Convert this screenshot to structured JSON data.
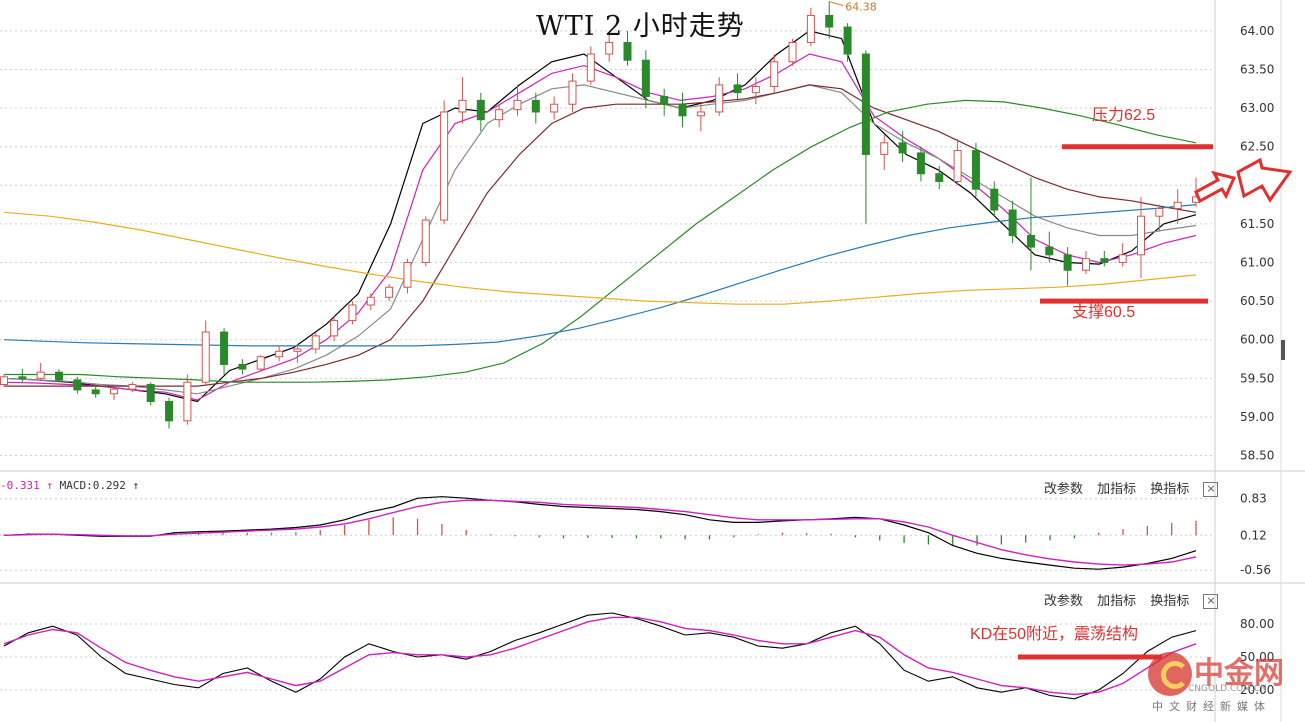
{
  "title": "WTI 2 小时走势",
  "panel_buttons": [
    "改参数",
    "加指标",
    "换指标"
  ],
  "close_symbol": "×",
  "macd_label": {
    "dif": "-0.331",
    "dif_arrow": "↑",
    "macd": "MACD:0.292",
    "macd_arrow": "↑"
  },
  "high_label": "64.38",
  "annotations": {
    "resistance": "压力62.5",
    "support": "支撑60.5",
    "kd": "KD在50附近，震荡结构"
  },
  "logo": {
    "cn": "中金网",
    "en": "CNGOLD.COM.CN",
    "sub": "中文财经新媒体"
  },
  "colors": {
    "up": "#d9534f",
    "down": "#2a8a2a",
    "annotation": "#e03030",
    "k": "#000000",
    "d": "#d020c0"
  },
  "chart_data": [
    {
      "type": "candlestick",
      "title": "WTI 2 小时走势",
      "yticks": [
        "64.00",
        "63.50",
        "63.00",
        "62.50",
        "62.00",
        "61.50",
        "61.00",
        "60.50",
        "60.00",
        "59.50",
        "59.00",
        "58.50"
      ],
      "ylim": [
        58.3,
        64.4
      ],
      "candles": [
        [
          59.42,
          59.55,
          59.4,
          59.52
        ],
        [
          59.52,
          59.62,
          59.45,
          59.5
        ],
        [
          59.5,
          59.7,
          59.48,
          59.58
        ],
        [
          59.58,
          59.62,
          59.45,
          59.48
        ],
        [
          59.48,
          59.52,
          59.3,
          59.35
        ],
        [
          59.35,
          59.42,
          59.25,
          59.3
        ],
        [
          59.3,
          59.38,
          59.22,
          59.36
        ],
        [
          59.36,
          59.45,
          59.32,
          59.42
        ],
        [
          59.42,
          59.45,
          59.15,
          59.2
        ],
        [
          59.2,
          59.25,
          58.85,
          58.95
        ],
        [
          58.95,
          59.55,
          58.9,
          59.45
        ],
        [
          59.45,
          60.25,
          59.4,
          60.1
        ],
        [
          60.1,
          60.15,
          59.55,
          59.68
        ],
        [
          59.68,
          59.75,
          59.55,
          59.62
        ],
        [
          59.62,
          59.8,
          59.6,
          59.78
        ],
        [
          59.78,
          59.92,
          59.72,
          59.85
        ],
        [
          59.85,
          59.95,
          59.7,
          59.88
        ],
        [
          59.88,
          60.1,
          59.82,
          60.05
        ],
        [
          60.05,
          60.3,
          59.98,
          60.25
        ],
        [
          60.25,
          60.5,
          60.2,
          60.45
        ],
        [
          60.45,
          60.6,
          60.38,
          60.55
        ],
        [
          60.55,
          60.72,
          60.5,
          60.68
        ],
        [
          60.68,
          61.05,
          60.6,
          61.0
        ],
        [
          61.0,
          61.6,
          60.95,
          61.55
        ],
        [
          61.55,
          63.1,
          61.5,
          62.95
        ],
        [
          62.95,
          63.4,
          62.8,
          63.1
        ],
        [
          63.1,
          63.2,
          62.7,
          62.85
        ],
        [
          62.85,
          63.05,
          62.75,
          62.98
        ],
        [
          62.98,
          63.3,
          62.9,
          63.1
        ],
        [
          63.1,
          63.2,
          62.8,
          62.95
        ],
        [
          62.95,
          63.15,
          62.85,
          63.05
        ],
        [
          63.05,
          63.45,
          62.95,
          63.35
        ],
        [
          63.35,
          63.8,
          63.3,
          63.7
        ],
        [
          63.7,
          63.95,
          63.6,
          63.85
        ],
        [
          63.85,
          64.0,
          63.55,
          63.62
        ],
        [
          63.62,
          63.75,
          63.0,
          63.15
        ],
        [
          63.15,
          63.25,
          62.9,
          63.05
        ],
        [
          63.05,
          63.2,
          62.75,
          62.9
        ],
        [
          62.9,
          63.05,
          62.7,
          62.95
        ],
        [
          62.95,
          63.4,
          62.9,
          63.3
        ],
        [
          63.3,
          63.45,
          63.1,
          63.2
        ],
        [
          63.2,
          63.4,
          63.05,
          63.28
        ],
        [
          63.28,
          63.7,
          63.2,
          63.6
        ],
        [
          63.6,
          63.9,
          63.55,
          63.85
        ],
        [
          63.85,
          64.3,
          63.8,
          64.2
        ],
        [
          64.2,
          64.38,
          63.9,
          64.05
        ],
        [
          64.05,
          64.1,
          63.6,
          63.7
        ],
        [
          63.7,
          63.75,
          61.5,
          62.4
        ],
        [
          62.4,
          62.65,
          62.2,
          62.55
        ],
        [
          62.55,
          62.7,
          62.3,
          62.42
        ],
        [
          62.42,
          62.5,
          62.05,
          62.15
        ],
        [
          62.15,
          62.25,
          61.95,
          62.05
        ],
        [
          62.05,
          62.6,
          62.0,
          62.45
        ],
        [
          62.45,
          62.55,
          61.85,
          61.95
        ],
        [
          61.95,
          62.05,
          61.6,
          61.68
        ],
        [
          61.68,
          61.8,
          61.25,
          61.35
        ],
        [
          61.35,
          62.1,
          60.9,
          61.2
        ],
        [
          61.2,
          61.4,
          61.0,
          61.1
        ],
        [
          61.1,
          61.2,
          60.7,
          60.9
        ],
        [
          60.9,
          61.15,
          60.85,
          61.05
        ],
        [
          61.05,
          61.15,
          60.95,
          61.0
        ],
        [
          61.0,
          61.25,
          60.95,
          61.1
        ],
        [
          61.1,
          61.85,
          60.8,
          61.6
        ],
        [
          61.6,
          61.75,
          61.4,
          61.7
        ],
        [
          61.7,
          61.95,
          61.5,
          61.78
        ],
        [
          61.78,
          62.1,
          61.72,
          61.85
        ]
      ],
      "moving_averages": [
        {
          "color": "#000000",
          "values": [
            59.5,
            59.48,
            59.45,
            59.4,
            59.35,
            59.3,
            59.2,
            59.6,
            59.75,
            59.9,
            60.2,
            60.6,
            61.5,
            62.8,
            63.0,
            62.95,
            63.3,
            63.6,
            63.7,
            63.4,
            63.1,
            63.0,
            63.1,
            63.3,
            63.7,
            64.0,
            63.9,
            62.8,
            62.4,
            62.2,
            61.9,
            61.5,
            61.1,
            61.0,
            60.98,
            61.15,
            61.5,
            61.62
          ]
        },
        {
          "color": "#d020c0",
          "values": [
            59.45,
            59.44,
            59.42,
            59.4,
            59.35,
            59.32,
            59.22,
            59.45,
            59.6,
            59.75,
            60.0,
            60.35,
            60.9,
            62.2,
            62.8,
            62.95,
            63.2,
            63.45,
            63.55,
            63.4,
            63.2,
            63.1,
            63.15,
            63.25,
            63.45,
            63.7,
            63.6,
            62.9,
            62.6,
            62.35,
            62.05,
            61.7,
            61.3,
            61.1,
            61.0,
            61.1,
            61.25,
            61.35
          ]
        },
        {
          "color": "#8a8a8a",
          "values": [
            59.5,
            59.48,
            59.46,
            59.42,
            59.4,
            59.35,
            59.3,
            59.4,
            59.5,
            59.62,
            59.8,
            60.05,
            60.4,
            61.3,
            62.2,
            62.8,
            63.05,
            63.25,
            63.3,
            63.2,
            63.1,
            63.0,
            63.05,
            63.1,
            63.2,
            63.3,
            63.2,
            62.8,
            62.55,
            62.35,
            62.1,
            61.85,
            61.6,
            61.45,
            61.35,
            61.35,
            61.42,
            61.48
          ]
        },
        {
          "color": "#7a2c2c",
          "values": [
            59.4,
            59.4,
            59.4,
            59.4,
            59.4,
            59.4,
            59.4,
            59.45,
            59.5,
            59.58,
            59.68,
            59.8,
            60.0,
            60.5,
            61.2,
            61.9,
            62.4,
            62.8,
            63.0,
            63.05,
            63.05,
            63.05,
            63.08,
            63.12,
            63.2,
            63.3,
            63.25,
            63.0,
            62.85,
            62.7,
            62.5,
            62.3,
            62.1,
            61.95,
            61.85,
            61.8,
            61.72,
            61.65
          ]
        },
        {
          "color": "#2a8a2a",
          "values": [
            59.55,
            59.55,
            59.55,
            59.52,
            59.5,
            59.48,
            59.45,
            59.45,
            59.45,
            59.46,
            59.48,
            59.52,
            59.58,
            59.7,
            59.95,
            60.3,
            60.7,
            61.1,
            61.5,
            61.85,
            62.2,
            62.5,
            62.75,
            62.95,
            63.05,
            63.1,
            63.08,
            63.0,
            62.9,
            62.78,
            62.65,
            62.55
          ]
        },
        {
          "color": "#2a7ab8",
          "values": [
            60.0,
            59.98,
            59.96,
            59.95,
            59.94,
            59.93,
            59.92,
            59.92,
            59.92,
            59.92,
            59.92,
            59.94,
            59.97,
            60.05,
            60.15,
            60.28,
            60.42,
            60.58,
            60.75,
            60.92,
            61.08,
            61.22,
            61.35,
            61.45,
            61.52,
            61.58,
            61.62,
            61.66,
            61.7,
            61.75
          ]
        },
        {
          "color": "#e6b020",
          "values": [
            61.65,
            61.6,
            61.52,
            61.42,
            61.3,
            61.18,
            61.06,
            60.95,
            60.85,
            60.76,
            60.68,
            60.62,
            60.58,
            60.54,
            60.5,
            60.48,
            60.46,
            60.46,
            60.5,
            60.55,
            60.6,
            60.64,
            60.66,
            60.68,
            60.72,
            60.78,
            60.84
          ]
        }
      ]
    },
    {
      "type": "macd",
      "yticks": [
        "0.83",
        "0.12",
        "-0.56"
      ],
      "ylim": [
        -0.75,
        1.0
      ],
      "dif": [
        0.0,
        0.02,
        0.02,
        0.0,
        -0.02,
        -0.02,
        -0.02,
        0.05,
        0.07,
        0.08,
        0.1,
        0.12,
        0.15,
        0.2,
        0.3,
        0.45,
        0.55,
        0.72,
        0.75,
        0.72,
        0.68,
        0.65,
        0.6,
        0.56,
        0.54,
        0.52,
        0.5,
        0.46,
        0.4,
        0.3,
        0.25,
        0.25,
        0.28,
        0.3,
        0.32,
        0.35,
        0.32,
        0.2,
        0.05,
        -0.2,
        -0.35,
        -0.45,
        -0.52,
        -0.58,
        -0.64,
        -0.66,
        -0.62,
        -0.55,
        -0.45,
        -0.3
      ],
      "dea": [
        0.0,
        0.01,
        0.02,
        0.01,
        0.0,
        -0.01,
        -0.01,
        0.02,
        0.04,
        0.06,
        0.08,
        0.1,
        0.12,
        0.16,
        0.22,
        0.32,
        0.44,
        0.56,
        0.64,
        0.68,
        0.68,
        0.66,
        0.64,
        0.6,
        0.58,
        0.56,
        0.54,
        0.5,
        0.46,
        0.4,
        0.34,
        0.3,
        0.3,
        0.3,
        0.31,
        0.32,
        0.32,
        0.26,
        0.16,
        0.0,
        -0.14,
        -0.28,
        -0.38,
        -0.46,
        -0.52,
        -0.56,
        -0.58,
        -0.56,
        -0.52,
        -0.42
      ],
      "histogram": [
        0.02,
        0.04,
        0.03,
        0.02,
        0.01,
        -0.02,
        -0.02,
        0.04,
        0.05,
        0.06,
        0.05,
        0.05,
        0.06,
        0.1,
        0.2,
        0.3,
        0.35,
        0.32,
        0.22,
        0.1,
        0.02,
        -0.02,
        -0.04,
        -0.06,
        -0.05,
        -0.05,
        -0.06,
        -0.06,
        -0.08,
        -0.08,
        -0.04,
        0.02,
        0.05,
        0.04,
        0.03,
        -0.04,
        -0.1,
        -0.15,
        -0.18,
        -0.2,
        -0.2,
        -0.18,
        -0.14,
        -0.1,
        -0.06,
        0.05,
        0.12,
        0.18,
        0.24,
        0.28
      ]
    },
    {
      "type": "kd",
      "yticks": [
        "80.00",
        "50.00",
        "20.00"
      ],
      "ylim": [
        0,
        100
      ],
      "k": [
        60,
        72,
        78,
        70,
        50,
        35,
        30,
        25,
        22,
        35,
        40,
        28,
        18,
        30,
        50,
        62,
        55,
        50,
        52,
        48,
        55,
        65,
        72,
        80,
        88,
        90,
        85,
        78,
        70,
        72,
        68,
        60,
        58,
        62,
        72,
        78,
        62,
        38,
        28,
        32,
        22,
        18,
        22,
        15,
        12,
        20,
        35,
        55,
        68,
        74
      ],
      "d": [
        62,
        70,
        75,
        72,
        58,
        45,
        38,
        32,
        28,
        32,
        36,
        30,
        24,
        28,
        40,
        52,
        54,
        52,
        52,
        50,
        52,
        58,
        66,
        74,
        82,
        86,
        86,
        82,
        76,
        74,
        70,
        65,
        62,
        62,
        68,
        74,
        68,
        52,
        40,
        36,
        30,
        24,
        22,
        18,
        16,
        18,
        26,
        40,
        54,
        62
      ]
    }
  ]
}
